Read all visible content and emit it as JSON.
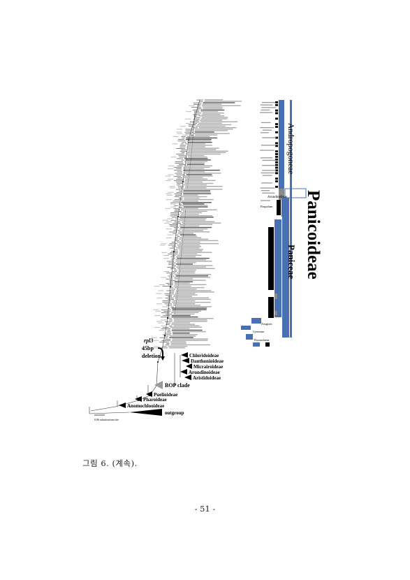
{
  "figure": {
    "subfamily": "Panicoideae",
    "tribes": [
      "Andropogoneae",
      "Paniceae"
    ],
    "clades": [
      {
        "name": "Chloridoideae"
      },
      {
        "name": "Danthonioideae"
      },
      {
        "name": "Micrairoideae"
      },
      {
        "name": "Arundinoideae"
      },
      {
        "name": "Aristidoideae"
      },
      {
        "name": "BOP clade"
      },
      {
        "name": "Puelioideae"
      },
      {
        "name": "Pharoideae"
      },
      {
        "name": "Anomochlooideae"
      },
      {
        "name": "outgroup"
      }
    ],
    "deletion_marker": {
      "gene": "rpl3",
      "size": "45bp",
      "word": "deletion"
    },
    "scale_bar": "0.06 substitutions/site",
    "small_groups": [
      "Arundinelleae",
      "Paspalum",
      "Zeugites",
      "Gynerium",
      "Thysanolaena"
    ]
  },
  "caption": "그림 6. (계속).",
  "page_number": "- 51 -",
  "colors": {
    "blue": "#4a70b4",
    "black": "#000000",
    "gray": "#8a8a8a"
  }
}
